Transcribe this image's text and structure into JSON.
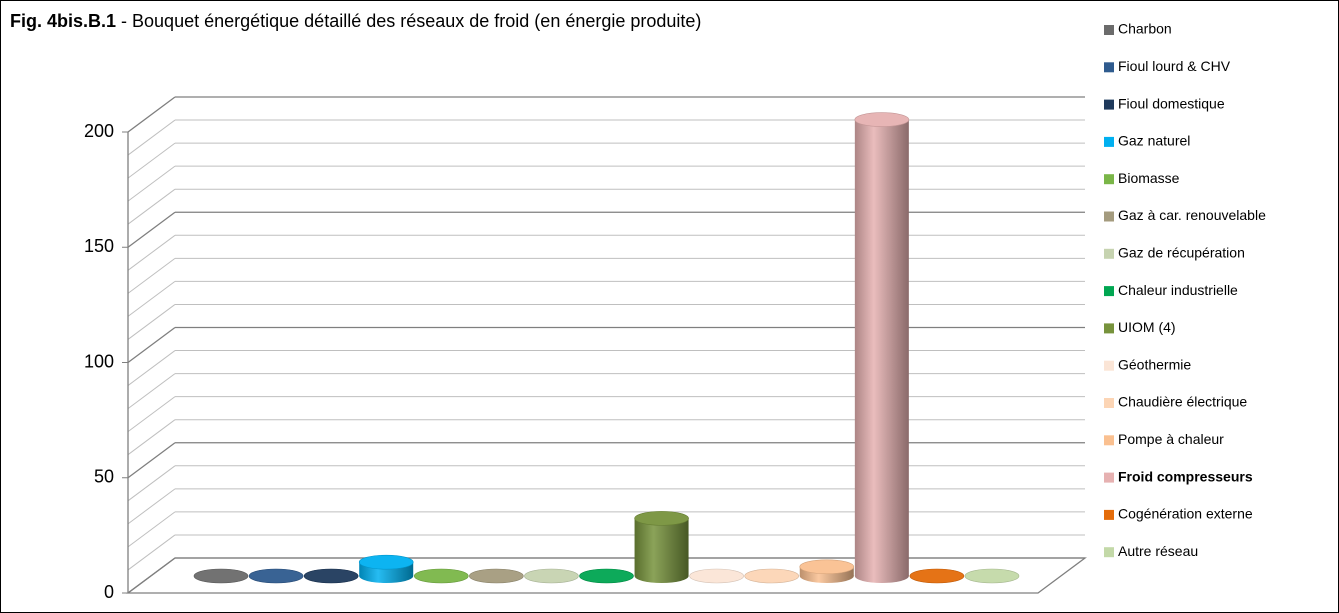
{
  "chart_data": {
    "type": "bar3d",
    "title_prefix": "Fig. 4bis.B.1",
    "title": "- Bouquet énergétique détaillé des réseaux de froid (en énergie produite)",
    "ylim": [
      0,
      200
    ],
    "yticks": [
      0,
      50,
      100,
      150,
      200
    ],
    "minor_yticks": [
      10,
      20,
      30,
      40,
      60,
      70,
      80,
      90,
      110,
      120,
      130,
      140,
      160,
      170,
      180,
      190
    ],
    "grid": true,
    "legend": "right",
    "series": [
      {
        "name": "Charbon",
        "color": "#6b6b6b",
        "values": [
          0
        ]
      },
      {
        "name": "Fioul lourd & CHV",
        "color": "#2f5b8e",
        "values": [
          0
        ]
      },
      {
        "name": "Fioul domestique",
        "color": "#1f3a5c",
        "values": [
          0
        ]
      },
      {
        "name": "Gaz naturel",
        "color": "#00b0f0",
        "values": [
          6
        ]
      },
      {
        "name": "Biomasse",
        "color": "#7ab648",
        "values": [
          0
        ]
      },
      {
        "name": "Gaz à car. renouvelable",
        "color": "#a49b7e",
        "values": [
          0
        ]
      },
      {
        "name": "Gaz de récupération",
        "color": "#c6d3b0",
        "values": [
          0
        ]
      },
      {
        "name": "Chaleur industrielle",
        "color": "#00a651",
        "values": [
          0
        ]
      },
      {
        "name": "UIOM (4)",
        "color": "#77933c",
        "values": [
          25
        ]
      },
      {
        "name": "Géothermie",
        "color": "#fbe5d6",
        "values": [
          0
        ]
      },
      {
        "name": "Chaudière électrique",
        "color": "#fcd5b5",
        "values": [
          0
        ]
      },
      {
        "name": "Pompe à chaleur",
        "color": "#fac090",
        "values": [
          4
        ]
      },
      {
        "name": "Froid compresseurs",
        "color": "#e6b1b1",
        "values": [
          198
        ],
        "bold": true
      },
      {
        "name": "Cogénération externe",
        "color": "#e46c0a",
        "values": [
          0
        ]
      },
      {
        "name": "Autre réseau",
        "color": "#c3d9a8",
        "values": [
          0
        ]
      }
    ]
  }
}
